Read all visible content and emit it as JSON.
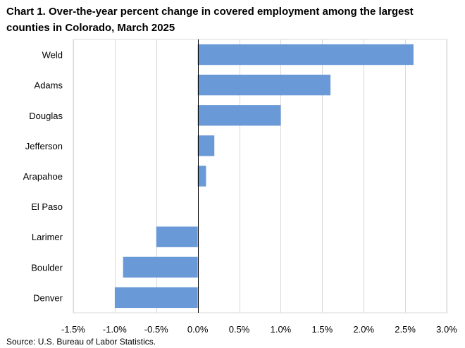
{
  "title": "Chart 1. Over-the-year percent change in covered employment among the largest counties in Colorado, March 2025",
  "source": "Source: U.S. Bureau of Labor Statistics.",
  "chart_data": {
    "type": "bar",
    "orientation": "horizontal",
    "title": "Chart 1. Over-the-year percent change in covered employment among the largest counties in Colorado, March 2025",
    "categories": [
      "Weld",
      "Adams",
      "Douglas",
      "Jefferson",
      "Arapahoe",
      "El Paso",
      "Larimer",
      "Boulder",
      "Denver"
    ],
    "values": [
      2.6,
      1.6,
      1.0,
      0.2,
      0.1,
      0.0,
      -0.5,
      -0.9,
      -1.0
    ],
    "xlim": [
      -1.5,
      3.0
    ],
    "xticks": [
      -1.5,
      -1.0,
      -0.5,
      0.0,
      0.5,
      1.0,
      1.5,
      2.0,
      2.5,
      3.0
    ],
    "xtick_labels": [
      "-1.5%",
      "-1.0%",
      "-0.5%",
      "0.0%",
      "0.5%",
      "1.0%",
      "1.5%",
      "2.0%",
      "2.5%",
      "3.0%"
    ],
    "xlabel": "",
    "ylabel": "",
    "grid": "vertical",
    "legend": "none",
    "bar_color": "#6a99d8",
    "grid_color": "#d9d9d9",
    "axis_color": "#000000"
  }
}
